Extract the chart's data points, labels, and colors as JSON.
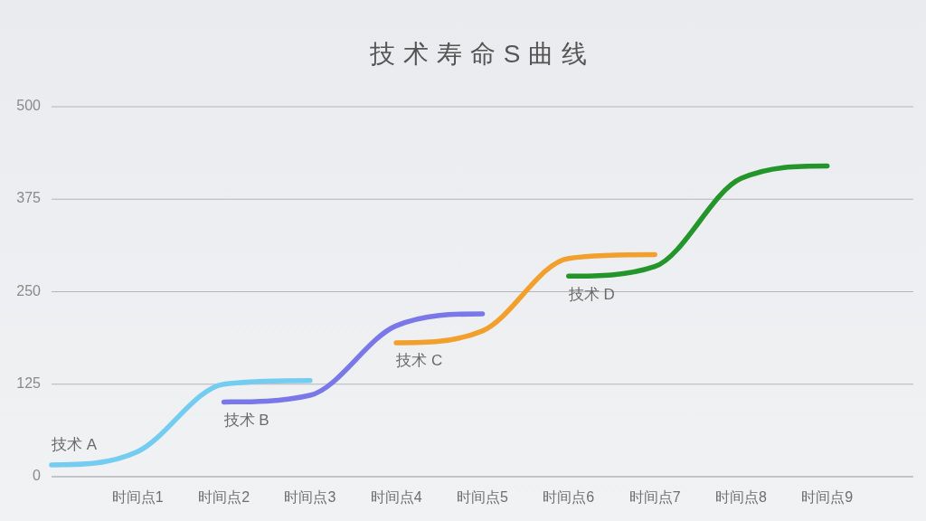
{
  "chart_data": {
    "type": "line",
    "title": "技术寿命S曲线",
    "categories": [
      null,
      "时间点1",
      "时间点2",
      "时间点3",
      "时间点4",
      "时间点5",
      "时间点6",
      "时间点7",
      "时间点8",
      "时间点9",
      null
    ],
    "ylim": [
      0,
      500
    ],
    "yticks": [
      0,
      125,
      250,
      375,
      500
    ],
    "grid": "y",
    "line_style": "solid",
    "series": [
      {
        "name": "技术 A",
        "color": "#74cdf0",
        "values": [
          16,
          34,
          125,
          130,
          null,
          null,
          null,
          null,
          null,
          null,
          null
        ]
      },
      {
        "name": "技术 B",
        "color": "#7a78e8",
        "values": [
          null,
          null,
          101,
          110,
          204,
          220,
          null,
          null,
          null,
          null,
          null
        ]
      },
      {
        "name": "技术 C",
        "color": "#f2a02d",
        "values": [
          null,
          null,
          null,
          null,
          181,
          197,
          295,
          300,
          null,
          null,
          null
        ]
      },
      {
        "name": "技术 D",
        "color": "#24952a",
        "values": [
          null,
          null,
          null,
          null,
          null,
          null,
          271,
          284,
          403,
          420,
          null
        ]
      }
    ]
  }
}
